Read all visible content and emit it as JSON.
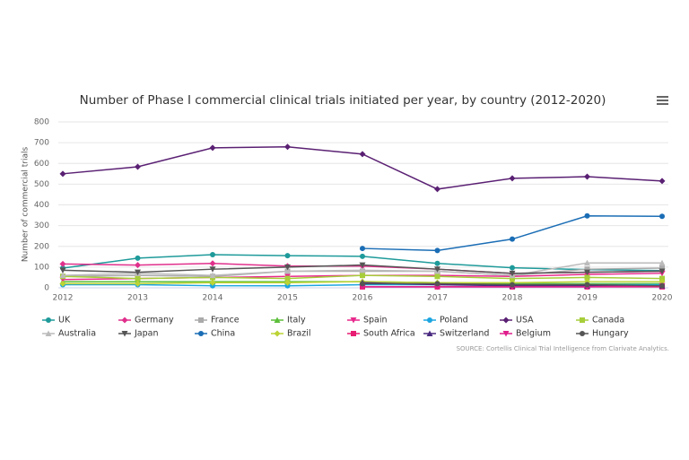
{
  "chart_data": {
    "type": "line",
    "title": "Number of Phase I commercial clinical trials initiated per year, by country (2012-2020)",
    "y_label": "Number of commercial trials",
    "source": "SOURCE: Cortellis Clinical Trial Intelligence from Clarivate Analytics.",
    "categories": [
      "2012",
      "2013",
      "2014",
      "2015",
      "2016",
      "2017",
      "2018",
      "2019",
      "2020"
    ],
    "ylim": [
      0,
      800
    ],
    "yticks": [
      0,
      100,
      200,
      300,
      400,
      500,
      600,
      700,
      800
    ],
    "grid": true,
    "series": [
      {
        "name": "UK",
        "color": "#1f9a9a",
        "marker": "circle",
        "values": [
          95,
          143,
          160,
          155,
          152,
          118,
          97,
          88,
          83
        ]
      },
      {
        "name": "Germany",
        "color": "#e0308c",
        "marker": "diamond",
        "values": [
          115,
          110,
          118,
          105,
          105,
          90,
          70,
          75,
          80
        ]
      },
      {
        "name": "France",
        "color": "#aaaaaa",
        "marker": "square",
        "values": [
          55,
          60,
          55,
          80,
          80,
          80,
          60,
          90,
          95
        ]
      },
      {
        "name": "Italy",
        "color": "#5cbf3a",
        "marker": "triangle",
        "values": [
          30,
          30,
          30,
          30,
          30,
          25,
          20,
          20,
          20
        ]
      },
      {
        "name": "Spain",
        "color": "#e8298c",
        "marker": "triangle-down",
        "values": [
          40,
          45,
          50,
          55,
          60,
          60,
          55,
          65,
          70
        ]
      },
      {
        "name": "Poland",
        "color": "#1ca5e0",
        "marker": "circle",
        "values": [
          15,
          15,
          10,
          10,
          15,
          15,
          15,
          15,
          15
        ]
      },
      {
        "name": "USA",
        "color": "#5a2073",
        "marker": "diamond",
        "values": [
          550,
          584,
          675,
          680,
          645,
          476,
          528,
          536,
          515
        ]
      },
      {
        "name": "Canada",
        "color": "#a7ce3a",
        "marker": "square",
        "values": [
          55,
          45,
          50,
          45,
          60,
          55,
          45,
          50,
          45
        ]
      },
      {
        "name": "Australia",
        "color": "#bbbbbb",
        "marker": "triangle",
        "values": [
          60,
          70,
          60,
          80,
          85,
          80,
          60,
          120,
          120
        ]
      },
      {
        "name": "Japan",
        "color": "#555555",
        "marker": "triangle-down",
        "values": [
          85,
          75,
          90,
          100,
          110,
          90,
          70,
          75,
          80
        ]
      },
      {
        "name": "China",
        "color": "#1a6db5",
        "marker": "circle",
        "values": [
          null,
          null,
          null,
          null,
          190,
          180,
          235,
          347,
          345
        ]
      },
      {
        "name": "Brazil",
        "color": "#bcd334",
        "marker": "diamond",
        "values": [
          20,
          20,
          25,
          25,
          30,
          25,
          25,
          30,
          30
        ]
      },
      {
        "name": "South Africa",
        "color": "#e81c72",
        "marker": "square",
        "values": [
          null,
          null,
          null,
          null,
          5,
          5,
          5,
          5,
          5
        ]
      },
      {
        "name": "Switzerland",
        "color": "#4a2a80",
        "marker": "triangle",
        "values": [
          null,
          null,
          null,
          null,
          25,
          15,
          10,
          10,
          10
        ]
      },
      {
        "name": "Belgium",
        "color": "#e01e8c",
        "marker": "triangle-down",
        "values": [
          null,
          null,
          null,
          null,
          5,
          5,
          5,
          5,
          10
        ]
      },
      {
        "name": "Hungary",
        "color": "#555555",
        "marker": "circle",
        "values": [
          null,
          null,
          null,
          null,
          20,
          20,
          15,
          15,
          10
        ]
      }
    ]
  }
}
